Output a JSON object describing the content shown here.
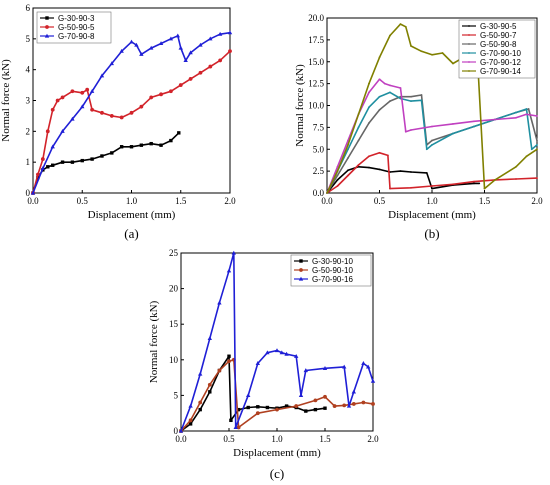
{
  "chart_data": [
    {
      "panel_label": "(a)",
      "type": "line",
      "xlabel": "Displacement (mm)",
      "ylabel": "Normal force (kN)",
      "xlim": [
        0,
        2.0
      ],
      "ylim": [
        0,
        6
      ],
      "xticks": [
        "0.0",
        "0.5",
        "1.0",
        "1.5",
        "2.0"
      ],
      "yticks": [
        "0",
        "1",
        "2",
        "3",
        "4",
        "5",
        "6"
      ],
      "legend_position": "top-left",
      "series": [
        {
          "name": "G-30-90-3",
          "color": "#000000",
          "marker": "square",
          "x": [
            0,
            0.05,
            0.1,
            0.15,
            0.2,
            0.3,
            0.4,
            0.5,
            0.6,
            0.7,
            0.8,
            0.9,
            1.0,
            1.1,
            1.2,
            1.3,
            1.4,
            1.48
          ],
          "y": [
            0,
            0.5,
            0.75,
            0.85,
            0.9,
            1.0,
            1.0,
            1.05,
            1.1,
            1.2,
            1.3,
            1.5,
            1.5,
            1.55,
            1.6,
            1.55,
            1.7,
            1.95
          ]
        },
        {
          "name": "G-50-90-5",
          "color": "#d2232a",
          "marker": "circle",
          "x": [
            0,
            0.05,
            0.1,
            0.15,
            0.2,
            0.25,
            0.3,
            0.4,
            0.5,
            0.55,
            0.6,
            0.7,
            0.8,
            0.9,
            1.0,
            1.1,
            1.2,
            1.3,
            1.4,
            1.5,
            1.6,
            1.7,
            1.8,
            1.9,
            2.0
          ],
          "y": [
            0,
            0.6,
            1.1,
            2.0,
            2.7,
            3.0,
            3.1,
            3.3,
            3.25,
            3.35,
            2.7,
            2.6,
            2.5,
            2.45,
            2.6,
            2.8,
            3.1,
            3.2,
            3.3,
            3.5,
            3.7,
            3.9,
            4.1,
            4.3,
            4.6
          ]
        },
        {
          "name": "G-70-90-8",
          "color": "#1f1fd6",
          "marker": "triangle",
          "x": [
            0,
            0.1,
            0.2,
            0.3,
            0.4,
            0.5,
            0.6,
            0.7,
            0.8,
            0.9,
            1.0,
            1.05,
            1.1,
            1.2,
            1.3,
            1.4,
            1.47,
            1.5,
            1.55,
            1.6,
            1.7,
            1.8,
            1.9,
            2.0
          ],
          "y": [
            0,
            0.8,
            1.5,
            2.0,
            2.4,
            2.8,
            3.3,
            3.8,
            4.2,
            4.6,
            4.9,
            4.8,
            4.5,
            4.7,
            4.85,
            5.0,
            5.1,
            4.7,
            4.3,
            4.55,
            4.8,
            5.0,
            5.15,
            5.2
          ]
        }
      ]
    },
    {
      "panel_label": "(b)",
      "type": "line",
      "xlabel": "Displacement (mm)",
      "ylabel": "Normal force (kN)",
      "xlim": [
        0,
        2.0
      ],
      "ylim": [
        0,
        20.0
      ],
      "xticks": [
        "0.0",
        "0.5",
        "1.0",
        "1.5",
        "2.0"
      ],
      "yticks": [
        "0.0",
        "2.5",
        "5.0",
        "7.5",
        "10.0",
        "12.5",
        "15.0",
        "17.5",
        "20.0"
      ],
      "legend_position": "top-right",
      "series": [
        {
          "name": "G-30-90-5",
          "color": "#000000",
          "x": [
            0,
            0.1,
            0.2,
            0.3,
            0.4,
            0.5,
            0.6,
            0.7,
            0.8,
            0.95,
            1.0,
            1.2,
            1.4,
            1.45
          ],
          "y": [
            0,
            1.5,
            2.6,
            3.0,
            2.9,
            2.7,
            2.4,
            2.5,
            2.4,
            2.3,
            0.5,
            0.9,
            1.1,
            1.1
          ]
        },
        {
          "name": "G-50-90-7",
          "color": "#d2232a",
          "x": [
            0,
            0.1,
            0.2,
            0.3,
            0.4,
            0.5,
            0.58,
            0.6,
            0.8,
            1.0,
            1.2,
            1.4,
            1.6,
            1.8,
            2.0
          ],
          "y": [
            0,
            0.8,
            2.0,
            3.2,
            4.2,
            4.6,
            4.3,
            0.5,
            0.6,
            0.8,
            1.0,
            1.3,
            1.5,
            1.6,
            1.7
          ]
        },
        {
          "name": "G-50-90-8",
          "color": "#666666",
          "x": [
            0,
            0.1,
            0.2,
            0.3,
            0.4,
            0.5,
            0.6,
            0.7,
            0.8,
            0.9,
            0.95,
            1.0,
            1.2,
            1.4,
            1.6,
            1.8,
            1.92,
            2.0
          ],
          "y": [
            0,
            2.0,
            4.0,
            6.0,
            8.0,
            9.5,
            10.5,
            11.0,
            11.0,
            11.2,
            5.5,
            6.0,
            6.8,
            7.6,
            8.4,
            9.2,
            9.6,
            6.0
          ]
        },
        {
          "name": "G-70-90-10",
          "color": "#1f8fa0",
          "x": [
            0,
            0.1,
            0.2,
            0.3,
            0.4,
            0.5,
            0.6,
            0.7,
            0.8,
            0.9,
            0.95,
            1.0,
            1.2,
            1.4,
            1.6,
            1.8,
            1.9,
            1.95,
            2.0
          ],
          "y": [
            0,
            2.5,
            5.0,
            7.5,
            9.8,
            11.0,
            11.5,
            10.8,
            10.5,
            10.6,
            5.0,
            5.5,
            6.8,
            7.6,
            8.4,
            9.2,
            9.6,
            5.0,
            5.5
          ]
        },
        {
          "name": "G-70-90-12",
          "color": "#c040c0",
          "x": [
            0,
            0.1,
            0.2,
            0.3,
            0.4,
            0.5,
            0.55,
            0.6,
            0.7,
            0.75,
            0.8,
            1.0,
            1.2,
            1.4,
            1.6,
            1.8,
            1.9,
            2.0
          ],
          "y": [
            0,
            3.0,
            6.0,
            9.0,
            11.5,
            13.0,
            12.5,
            12.3,
            12.0,
            7.0,
            7.2,
            7.6,
            7.9,
            8.2,
            8.4,
            8.6,
            9.0,
            8.8
          ]
        },
        {
          "name": "G-70-90-14",
          "color": "#808000",
          "x": [
            0,
            0.1,
            0.2,
            0.3,
            0.4,
            0.5,
            0.6,
            0.7,
            0.75,
            0.8,
            0.9,
            1.0,
            1.1,
            1.2,
            1.3,
            1.4,
            1.43,
            1.5,
            1.6,
            1.8,
            1.9,
            2.0
          ],
          "y": [
            0,
            2.5,
            5.5,
            9.0,
            12.5,
            15.5,
            18.0,
            19.3,
            19.0,
            16.8,
            16.2,
            15.8,
            16.0,
            14.8,
            15.5,
            16.0,
            16.2,
            0.5,
            1.5,
            3.0,
            4.2,
            5.0
          ]
        }
      ]
    },
    {
      "panel_label": "(c)",
      "type": "line",
      "xlabel": "Displacement (mm)",
      "ylabel": "Normal force (kN)",
      "xlim": [
        0,
        2.0
      ],
      "ylim": [
        0,
        25
      ],
      "xticks": [
        "0.0",
        "0.5",
        "1.0",
        "1.5",
        "2.0"
      ],
      "yticks": [
        "0",
        "5",
        "10",
        "15",
        "20",
        "25"
      ],
      "legend_position": "top-right",
      "series": [
        {
          "name": "G-30-90-10",
          "color": "#000000",
          "marker": "square",
          "x": [
            0,
            0.1,
            0.2,
            0.3,
            0.4,
            0.5,
            0.52,
            0.6,
            0.7,
            0.8,
            0.9,
            1.0,
            1.1,
            1.2,
            1.3,
            1.4,
            1.5
          ],
          "y": [
            0,
            1.0,
            3.0,
            5.5,
            8.5,
            10.5,
            1.5,
            3.0,
            3.3,
            3.4,
            3.3,
            3.2,
            3.5,
            3.3,
            2.8,
            3.0,
            3.2
          ]
        },
        {
          "name": "G-50-90-10",
          "color": "#b04020",
          "marker": "circle",
          "x": [
            0,
            0.1,
            0.2,
            0.3,
            0.4,
            0.5,
            0.55,
            0.6,
            0.8,
            1.0,
            1.2,
            1.4,
            1.5,
            1.6,
            1.7,
            1.8,
            1.9,
            2.0
          ],
          "y": [
            0,
            1.5,
            4.0,
            6.5,
            8.5,
            9.8,
            10.0,
            0.5,
            2.5,
            3.0,
            3.5,
            4.3,
            4.8,
            3.5,
            3.6,
            3.8,
            4.0,
            3.8
          ]
        },
        {
          "name": "G-70-90-16",
          "color": "#1f1fd6",
          "marker": "triangle",
          "x": [
            0,
            0.1,
            0.2,
            0.3,
            0.4,
            0.5,
            0.55,
            0.57,
            0.7,
            0.8,
            0.9,
            1.0,
            1.05,
            1.1,
            1.2,
            1.25,
            1.3,
            1.5,
            1.7,
            1.75,
            1.8,
            1.9,
            1.95,
            2.0
          ],
          "y": [
            0,
            3.5,
            8.0,
            13.0,
            18.0,
            22.5,
            25.0,
            0.5,
            5.0,
            9.5,
            11.0,
            11.3,
            11.0,
            10.8,
            10.5,
            5.0,
            8.5,
            8.8,
            9.0,
            3.5,
            5.5,
            9.5,
            9.0,
            7.0
          ]
        }
      ]
    }
  ]
}
